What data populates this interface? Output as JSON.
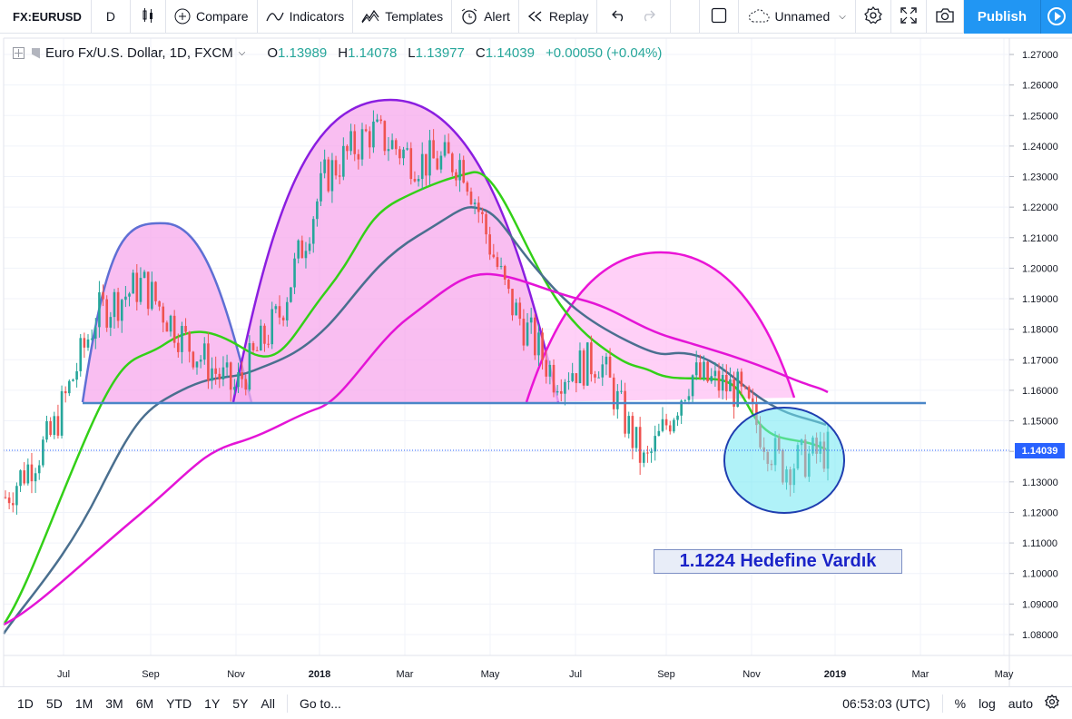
{
  "toolbar": {
    "symbol": "FX:EURUSD",
    "interval": "D",
    "compare": "Compare",
    "indicators": "Indicators",
    "templates": "Templates",
    "alert": "Alert",
    "replay": "Replay",
    "layout_name": "Unnamed",
    "publish": "Publish"
  },
  "legend": {
    "title": "Euro Fx/U.S. Dollar, 1D, FXCM",
    "open_label": "O",
    "open": "1.13989",
    "high_label": "H",
    "high": "1.14078",
    "low_label": "L",
    "low": "1.13977",
    "close_label": "C",
    "close": "1.14039",
    "change": "+0.00050 (+0.04%)"
  },
  "annotation": {
    "text": "1.1224 Hedefine Vardık"
  },
  "price_scale": {
    "current_price": "1.14039",
    "ticks": [
      "1.27000",
      "1.26000",
      "1.25000",
      "1.24000",
      "1.23000",
      "1.22000",
      "1.21000",
      "1.20000",
      "1.19000",
      "1.18000",
      "1.17000",
      "1.16000",
      "1.15000",
      "1.14000",
      "1.13000",
      "1.12000",
      "1.11000",
      "1.10000",
      "1.09000",
      "1.08000"
    ]
  },
  "time_scale": {
    "labels": [
      "Jul",
      "Sep",
      "Nov",
      "2018",
      "Mar",
      "May",
      "Jul",
      "Sep",
      "Nov",
      "2019",
      "Mar",
      "May"
    ]
  },
  "bottombar": {
    "ranges": [
      "1D",
      "5D",
      "1M",
      "3M",
      "6M",
      "YTD",
      "1Y",
      "5Y",
      "All"
    ],
    "goto": "Go to...",
    "time": "06:53:03 (UTC)",
    "percent": "%",
    "log": "log",
    "auto": "auto"
  },
  "colors": {
    "up": "#26a69a",
    "down": "#ef5350",
    "ma_green": "#33d017",
    "ma_slate": "#4a6f8f",
    "ma_magenta": "#e414d6",
    "neckline": "#4a86c8",
    "accent": "#2196f3"
  },
  "chart_data": {
    "type": "line",
    "price_ylim": [
      1.075,
      1.275
    ],
    "x_axis_labels": [
      "Jul",
      "Sep",
      "Nov",
      "2018",
      "Mar",
      "May",
      "Jul",
      "Sep",
      "Nov",
      "2019",
      "Mar",
      "May"
    ],
    "close_path": [
      [
        "Jun 2017",
        1.125
      ],
      [
        "Jul 2017",
        1.145
      ],
      [
        "Aug 2017",
        1.185
      ],
      [
        "Sep 2017",
        1.195
      ],
      [
        "Oct 2017",
        1.175
      ],
      [
        "Nov 2017",
        1.16
      ],
      [
        "Dec 2017",
        1.185
      ],
      [
        "Jan 2018",
        1.23
      ],
      [
        "Feb 2018",
        1.245
      ],
      [
        "Mar 2018",
        1.235
      ],
      [
        "Apr 2018",
        1.235
      ],
      [
        "May 2018",
        1.19
      ],
      [
        "Jun 2018",
        1.165
      ],
      [
        "Jul 2018",
        1.17
      ],
      [
        "Aug 2018",
        1.135
      ],
      [
        "Sep 2018",
        1.165
      ],
      [
        "Oct 2018",
        1.16
      ],
      [
        "Nov 2018",
        1.135
      ],
      [
        "Dec 2018",
        1.14039
      ]
    ],
    "levels": {
      "neckline": 1.1556,
      "target": 1.1224,
      "last_close": 1.14039
    }
  }
}
